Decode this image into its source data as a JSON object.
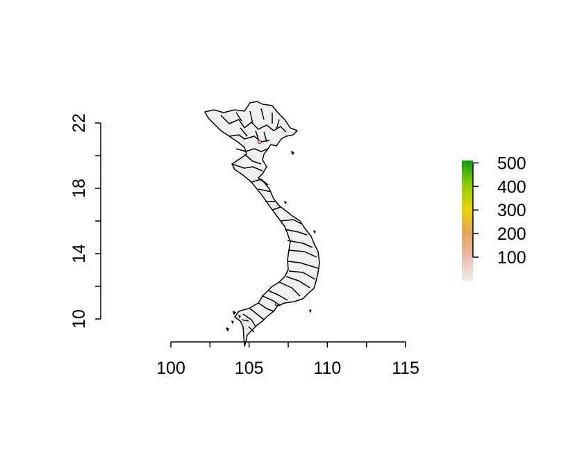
{
  "map": {
    "x_axis": {
      "range": [
        100,
        115
      ],
      "ticks": [
        {
          "value": 100,
          "label": "100"
        },
        {
          "value": 105,
          "label": "105"
        },
        {
          "value": 110,
          "label": "110"
        },
        {
          "value": 115,
          "label": "115"
        }
      ]
    },
    "y_axis": {
      "range": [
        10,
        22
      ],
      "ticks": [
        {
          "value": 10,
          "label": "10"
        },
        {
          "value": 14,
          "label": "14"
        },
        {
          "value": 18,
          "label": "18"
        },
        {
          "value": 22,
          "label": "22"
        }
      ]
    },
    "legend": {
      "placement": "right",
      "range": [
        0,
        510
      ],
      "ticks": [
        {
          "value": 100,
          "label": "100"
        },
        {
          "value": 200,
          "label": "200"
        },
        {
          "value": 300,
          "label": "300"
        },
        {
          "value": 400,
          "label": "400"
        },
        {
          "value": 500,
          "label": "500"
        }
      ],
      "colors": [
        "#eeeeee",
        "#ebb9ad",
        "#e6a55a",
        "#e5d40c",
        "#8fcb0e",
        "#129812"
      ]
    },
    "fill_color": "#f0f0f0",
    "border_color": "#000000"
  }
}
